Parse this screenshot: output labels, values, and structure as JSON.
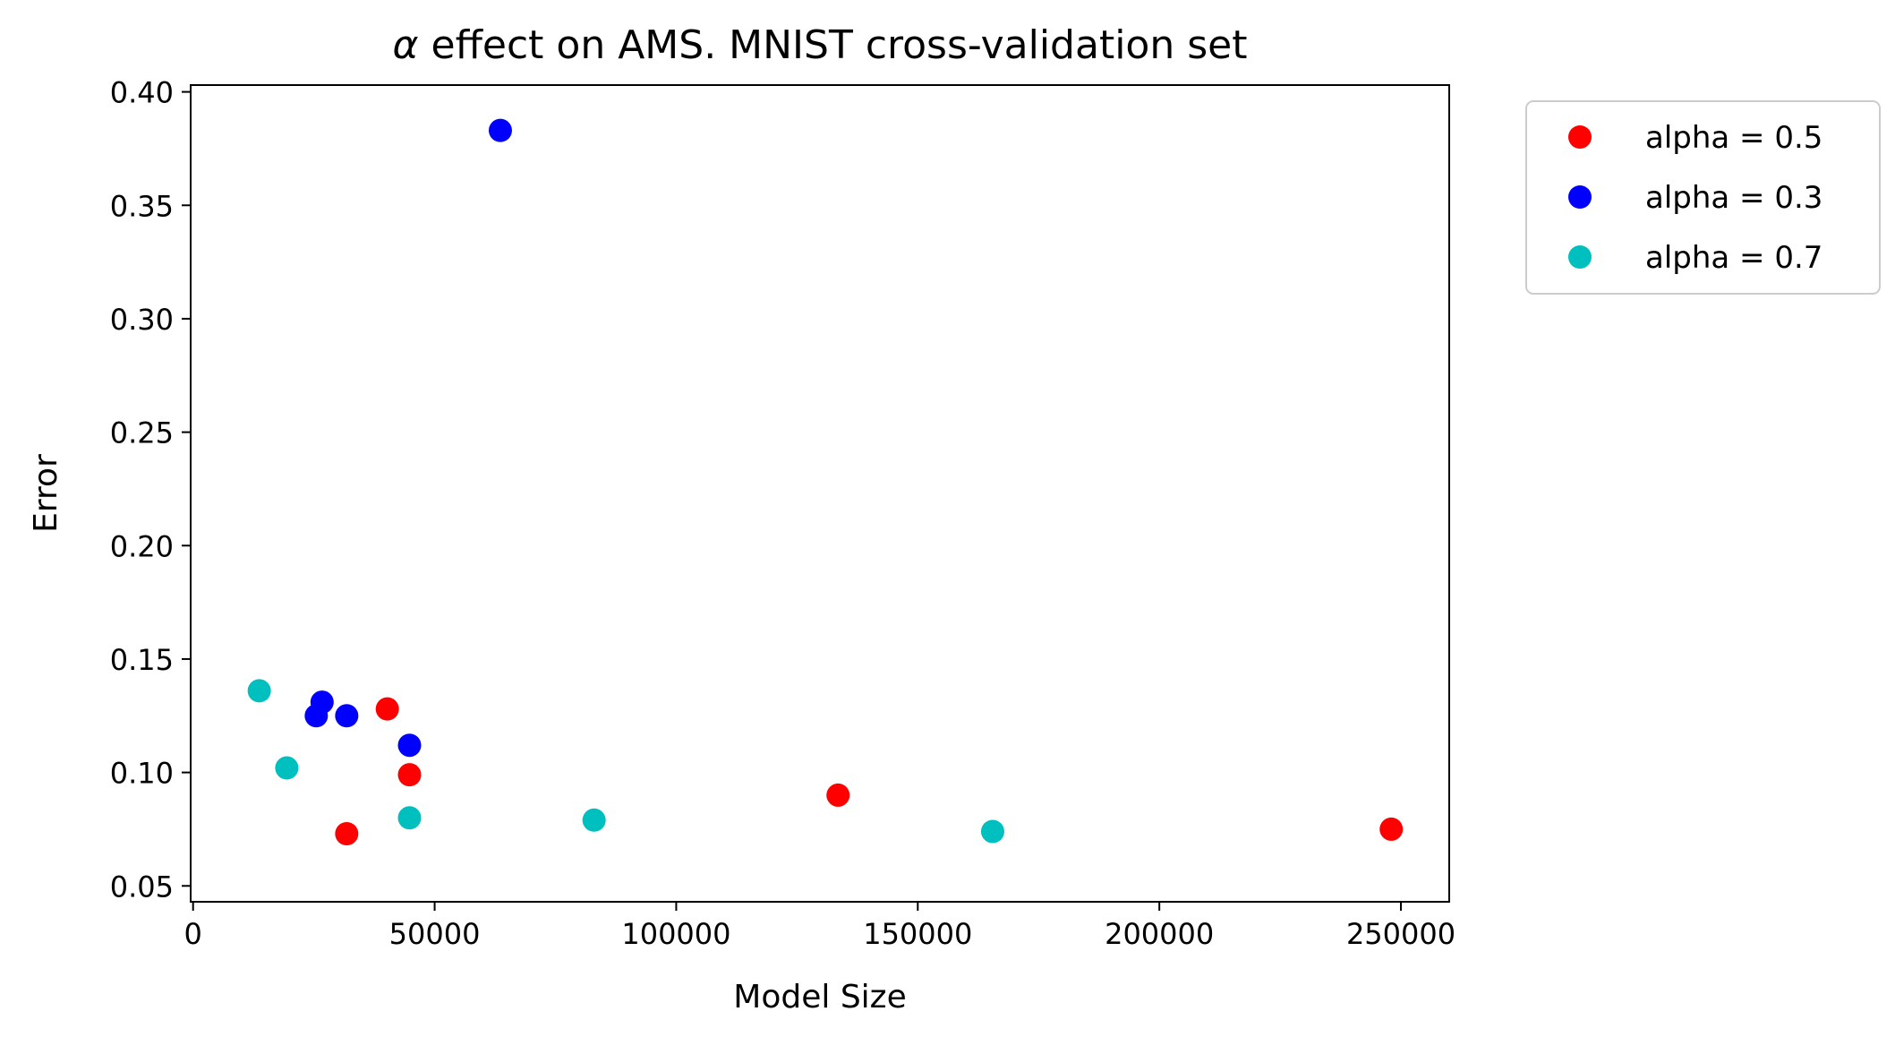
{
  "chart_data": {
    "type": "scatter",
    "title_symbol": "α",
    "title": " effect on AMS. MNIST cross-validation set",
    "xlabel": "Model Size",
    "ylabel": "Error",
    "xlim": [
      -500,
      260000
    ],
    "ylim": [
      0.043,
      0.403
    ],
    "x_ticks": [
      0,
      50000,
      100000,
      150000,
      200000,
      250000
    ],
    "x_tick_labels": [
      "0",
      "50000",
      "100000",
      "150000",
      "200000",
      "250000"
    ],
    "y_ticks": [
      0.05,
      0.1,
      0.15,
      0.2,
      0.25,
      0.3,
      0.35,
      0.4
    ],
    "y_tick_labels": [
      "0.05",
      "0.10",
      "0.15",
      "0.20",
      "0.25",
      "0.30",
      "0.35",
      "0.40"
    ],
    "grid": false,
    "legend_position": "outside-upper-right",
    "series": [
      {
        "name": "alpha = 0.5",
        "color": "#ff0000",
        "x": [
          31800,
          40200,
          44800,
          133500,
          248000
        ],
        "y": [
          0.073,
          0.128,
          0.099,
          0.09,
          0.075
        ]
      },
      {
        "name": "alpha = 0.3",
        "color": "#0000ff",
        "x": [
          25500,
          26700,
          31800,
          44800,
          63600
        ],
        "y": [
          0.125,
          0.131,
          0.125,
          0.112,
          0.383
        ]
      },
      {
        "name": "alpha = 0.7",
        "color": "#00bfbf",
        "x": [
          13700,
          19400,
          44800,
          83000,
          165500
        ],
        "y": [
          0.136,
          0.102,
          0.08,
          0.079,
          0.074
        ]
      }
    ]
  }
}
